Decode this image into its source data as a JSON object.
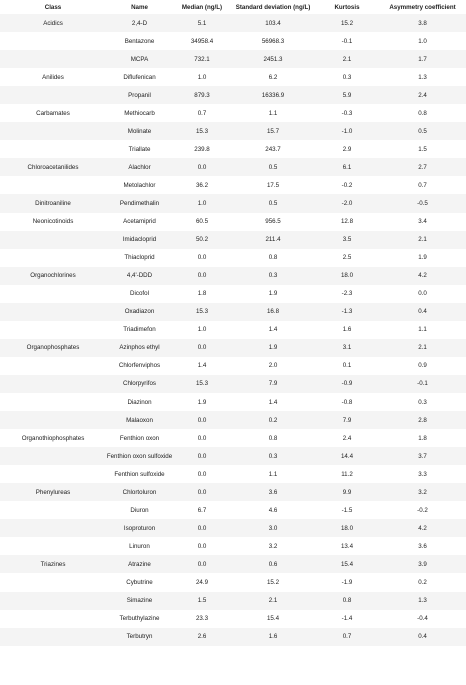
{
  "headers": [
    "Class",
    "Name",
    "Median (ng/L)",
    "Standard deviation (ng/L)",
    "Kurtosis",
    "Asymmetry coefficient"
  ],
  "rows": [
    [
      "Acidics",
      "2,4-D",
      "5.1",
      "103.4",
      "15.2",
      "3.8"
    ],
    [
      "",
      "Bentazone",
      "34958.4",
      "56968.3",
      "-0.1",
      "1.0"
    ],
    [
      "",
      "MCPA",
      "732.1",
      "2451.3",
      "2.1",
      "1.7"
    ],
    [
      "Anilides",
      "Diflufenican",
      "1.0",
      "6.2",
      "0.3",
      "1.3"
    ],
    [
      "",
      "Propanil",
      "879.3",
      "16336.9",
      "5.9",
      "2.4"
    ],
    [
      "Carbamates",
      "Methiocarb",
      "0.7",
      "1.1",
      "-0.3",
      "0.8"
    ],
    [
      "",
      "Molinate",
      "15.3",
      "15.7",
      "-1.0",
      "0.5"
    ],
    [
      "",
      "Triallate",
      "239.8",
      "243.7",
      "2.9",
      "1.5"
    ],
    [
      "Chloroacetanilides",
      "Alachlor",
      "0.0",
      "0.5",
      "6.1",
      "2.7"
    ],
    [
      "",
      "Metolachlor",
      "36.2",
      "17.5",
      "-0.2",
      "0.7"
    ],
    [
      "Dinitroaniline",
      "Pendimethalin",
      "1.0",
      "0.5",
      "-2.0",
      "-0.5"
    ],
    [
      "Neonicotinoids",
      "Acetamiprid",
      "60.5",
      "956.5",
      "12.8",
      "3.4"
    ],
    [
      "",
      "Imidacloprid",
      "50.2",
      "211.4",
      "3.5",
      "2.1"
    ],
    [
      "",
      "Thiacloprid",
      "0.0",
      "0.8",
      "2.5",
      "1.9"
    ],
    [
      "Organochlorines",
      "4,4'-DDD",
      "0.0",
      "0.3",
      "18.0",
      "4.2"
    ],
    [
      "",
      "Dicofol",
      "1.8",
      "1.9",
      "-2.3",
      "0.0"
    ],
    [
      "",
      "Oxadiazon",
      "15.3",
      "16.8",
      "-1.3",
      "0.4"
    ],
    [
      "",
      "Triadimefon",
      "1.0",
      "1.4",
      "1.6",
      "1.1"
    ],
    [
      "Organophosphates",
      "Azinphos ethyl",
      "0.0",
      "1.9",
      "3.1",
      "2.1"
    ],
    [
      "",
      "Chlorfenviphos",
      "1.4",
      "2.0",
      "0.1",
      "0.9"
    ],
    [
      "",
      "Chlorpyrifos",
      "15.3",
      "7.9",
      "-0.9",
      "-0.1"
    ],
    [
      "",
      "Diazinon",
      "1.9",
      "1.4",
      "-0.8",
      "0.3"
    ],
    [
      "",
      "Malaoxon",
      "0.0",
      "0.2",
      "7.9",
      "2.8"
    ],
    [
      "Organothiophosphates",
      "Fenthion oxon",
      "0.0",
      "0.8",
      "2.4",
      "1.8"
    ],
    [
      "",
      "Fenthion oxon sulfoxide",
      "0.0",
      "0.3",
      "14.4",
      "3.7"
    ],
    [
      "",
      "Fenthion sulfoxide",
      "0.0",
      "1.1",
      "11.2",
      "3.3"
    ],
    [
      "Phenylureas",
      "Chlortoluron",
      "0.0",
      "3.6",
      "9.9",
      "3.2"
    ],
    [
      "",
      "Diuron",
      "6.7",
      "4.6",
      "-1.5",
      "-0.2"
    ],
    [
      "",
      "Isoproturon",
      "0.0",
      "3.0",
      "18.0",
      "4.2"
    ],
    [
      "",
      "Linuron",
      "0.0",
      "3.2",
      "13.4",
      "3.6"
    ],
    [
      "Triazines",
      "Atrazine",
      "0.0",
      "0.6",
      "15.4",
      "3.9"
    ],
    [
      "",
      "Cybutrine",
      "24.9",
      "15.2",
      "-1.9",
      "0.2"
    ],
    [
      "",
      "Simazine",
      "1.5",
      "2.1",
      "0.8",
      "1.3"
    ],
    [
      "",
      "Terbuthylazine",
      "23.3",
      "15.4",
      "-1.4",
      "-0.4"
    ],
    [
      "",
      "Terbutryn",
      "2.6",
      "1.6",
      "0.7",
      "0.4"
    ]
  ]
}
